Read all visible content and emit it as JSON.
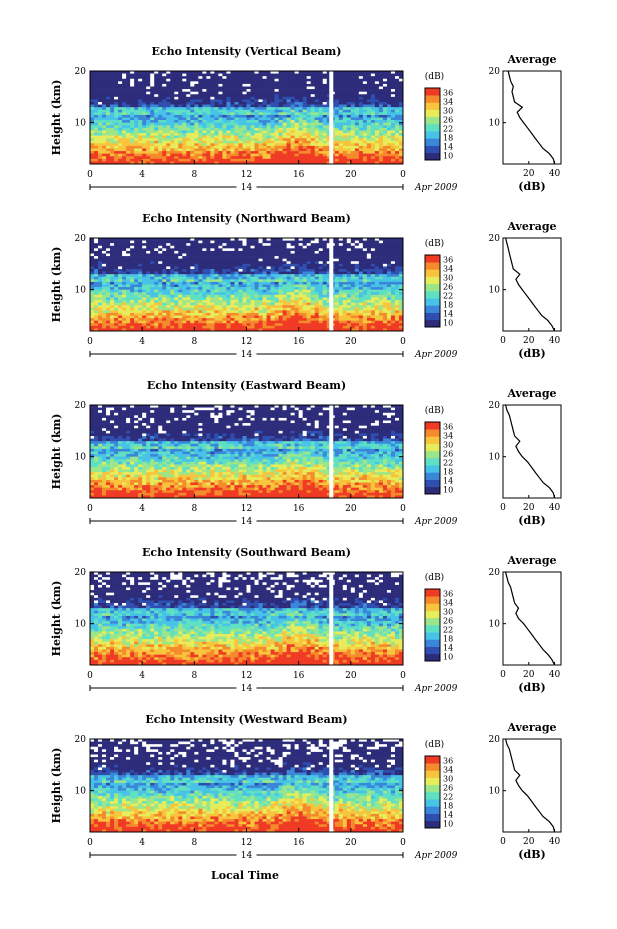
{
  "figure": {
    "xlabel": "Local Time",
    "ylabel": "Height (km)",
    "date_label": "Apr 2009",
    "day_label": "14",
    "average_title": "Average",
    "average_xlabel": "(dB)",
    "colorbar_unit": "(dB)",
    "colorbar_ticks": [
      "36",
      "34",
      "30",
      "26",
      "22",
      "18",
      "14",
      "10"
    ]
  },
  "colors": {
    "scale": [
      "#2c2c7a",
      "#2f4fb0",
      "#3a86d8",
      "#46c3e6",
      "#5fe0c2",
      "#9be68a",
      "#e6ec5a",
      "#f8c43c",
      "#f48a2c",
      "#ef3a24"
    ]
  },
  "chart_data": [
    {
      "type": "heatmap",
      "title": "Echo Intensity (Vertical Beam)",
      "xlabel": "",
      "ylabel": "Height (km)",
      "x_ticks": [
        "0",
        "4",
        "8",
        "12",
        "16",
        "20",
        "0"
      ],
      "y_ticks": [
        "10",
        "20"
      ],
      "xlim": [
        0,
        24
      ],
      "ylim": [
        2,
        20
      ],
      "gap_hour": 18.5,
      "avg_profile": {
        "xlabel": "(dB)",
        "x_ticks": [
          "20",
          "40"
        ],
        "xlim": [
          0,
          45
        ],
        "height": [
          2,
          3,
          4,
          5,
          6,
          7,
          8,
          9,
          10,
          11,
          12,
          13,
          14,
          15,
          16,
          17,
          18,
          19,
          20
        ],
        "db": [
          40,
          39,
          36,
          31,
          28,
          25,
          22,
          19,
          16,
          13,
          11,
          15,
          9,
          8,
          7,
          8,
          6,
          5,
          4
        ]
      }
    },
    {
      "type": "heatmap",
      "title": "Echo Intensity (Northward Beam)",
      "xlabel": "",
      "ylabel": "Height (km)",
      "x_ticks": [
        "0",
        "4",
        "8",
        "12",
        "16",
        "20",
        "0"
      ],
      "y_ticks": [
        "10",
        "20"
      ],
      "xlim": [
        0,
        24
      ],
      "ylim": [
        2,
        20
      ],
      "gap_hour": 18.5,
      "avg_profile": {
        "xlabel": "(dB)",
        "x_ticks": [
          "0",
          "20",
          "40"
        ],
        "xlim": [
          0,
          45
        ],
        "height": [
          2,
          3,
          4,
          5,
          6,
          7,
          8,
          9,
          10,
          11,
          12,
          13,
          14,
          15,
          16,
          17,
          18,
          19,
          20
        ],
        "db": [
          40,
          38,
          35,
          30,
          27,
          24,
          21,
          18,
          15,
          12,
          10,
          13,
          8,
          7,
          6,
          5,
          4,
          3,
          2
        ]
      }
    },
    {
      "type": "heatmap",
      "title": "Echo Intensity (Eastward Beam)",
      "xlabel": "",
      "ylabel": "Height (km)",
      "x_ticks": [
        "0",
        "4",
        "8",
        "12",
        "16",
        "20",
        "0"
      ],
      "y_ticks": [
        "10",
        "20"
      ],
      "xlim": [
        0,
        24
      ],
      "ylim": [
        2,
        20
      ],
      "gap_hour": 18.5,
      "avg_profile": {
        "xlabel": "(dB)",
        "x_ticks": [
          "0",
          "20",
          "40"
        ],
        "xlim": [
          0,
          45
        ],
        "height": [
          2,
          3,
          4,
          5,
          6,
          7,
          8,
          9,
          10,
          11,
          12,
          13,
          14,
          15,
          16,
          17,
          18,
          19,
          20
        ],
        "db": [
          40,
          39,
          36,
          31,
          28,
          25,
          22,
          19,
          15,
          12,
          10,
          13,
          9,
          8,
          7,
          6,
          5,
          3,
          2
        ]
      }
    },
    {
      "type": "heatmap",
      "title": "Echo Intensity (Southward Beam)",
      "xlabel": "",
      "ylabel": "Height (km)",
      "x_ticks": [
        "0",
        "4",
        "8",
        "12",
        "16",
        "20",
        "0"
      ],
      "y_ticks": [
        "10",
        "20"
      ],
      "xlim": [
        0,
        24
      ],
      "ylim": [
        2,
        20
      ],
      "gap_hour": 18.5,
      "avg_profile": {
        "xlabel": "(dB)",
        "x_ticks": [
          "0",
          "20",
          "40"
        ],
        "xlim": [
          0,
          45
        ],
        "height": [
          2,
          3,
          4,
          5,
          6,
          7,
          8,
          9,
          10,
          11,
          12,
          13,
          14,
          15,
          16,
          17,
          18,
          19,
          20
        ],
        "db": [
          40,
          38,
          35,
          31,
          28,
          25,
          22,
          19,
          16,
          12,
          10,
          12,
          9,
          8,
          7,
          6,
          4,
          3,
          2
        ]
      }
    },
    {
      "type": "heatmap",
      "title": "Echo Intensity (Westward Beam)",
      "xlabel": "Local Time",
      "ylabel": "Height (km)",
      "x_ticks": [
        "0",
        "4",
        "8",
        "12",
        "16",
        "20",
        "0"
      ],
      "y_ticks": [
        "10",
        "20"
      ],
      "xlim": [
        0,
        24
      ],
      "ylim": [
        2,
        20
      ],
      "gap_hour": 18.5,
      "avg_profile": {
        "xlabel": "(dB)",
        "x_ticks": [
          "0",
          "20",
          "40"
        ],
        "xlim": [
          0,
          45
        ],
        "height": [
          2,
          3,
          4,
          5,
          6,
          7,
          8,
          9,
          10,
          11,
          12,
          13,
          14,
          15,
          16,
          17,
          18,
          19,
          20
        ],
        "db": [
          40,
          39,
          36,
          31,
          28,
          25,
          22,
          19,
          15,
          12,
          10,
          13,
          9,
          8,
          7,
          6,
          5,
          3,
          2
        ]
      }
    }
  ]
}
